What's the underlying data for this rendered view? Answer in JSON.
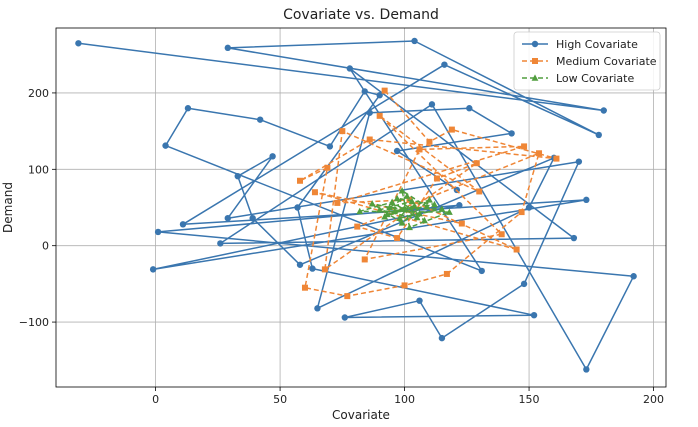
{
  "chart_data": {
    "type": "line",
    "title": "Covariate vs. Demand",
    "xlabel": "Covariate",
    "ylabel": "Demand",
    "xlim": [
      -40,
      205
    ],
    "ylim": [
      -185,
      285
    ],
    "xticks": [
      0,
      50,
      100,
      150,
      200
    ],
    "yticks": [
      -100,
      0,
      100,
      200
    ],
    "grid": true,
    "legend_position": "top-right",
    "series": [
      {
        "name": "High Covariate",
        "color": "#3a76af",
        "marker": "circle",
        "linestyle": "solid",
        "points": [
          [
            -31,
            265
          ],
          [
            180,
            177
          ],
          [
            29,
            259
          ],
          [
            104,
            268
          ],
          [
            178,
            145
          ],
          [
            116,
            237
          ],
          [
            11,
            28
          ],
          [
            173,
            60
          ],
          [
            -1,
            -31
          ],
          [
            122,
            53
          ],
          [
            1,
            18
          ],
          [
            192,
            -40
          ],
          [
            173,
            -162
          ],
          [
            111,
            185
          ],
          [
            26,
            3
          ],
          [
            168,
            10
          ],
          [
            78,
            232
          ],
          [
            131,
            -33
          ],
          [
            4,
            131
          ],
          [
            13,
            180
          ],
          [
            42,
            165
          ],
          [
            70,
            130
          ],
          [
            84,
            202
          ],
          [
            90,
            197
          ],
          [
            57,
            50
          ],
          [
            63,
            -30
          ],
          [
            152,
            -91
          ],
          [
            76,
            -94
          ],
          [
            106,
            -72
          ],
          [
            115,
            -121
          ],
          [
            148,
            -50
          ],
          [
            170,
            110
          ],
          [
            29,
            36
          ],
          [
            47,
            117
          ],
          [
            33,
            91
          ],
          [
            39,
            36
          ],
          [
            58,
            -25
          ],
          [
            160,
            115
          ],
          [
            150,
            50
          ],
          [
            65,
            -82
          ],
          [
            86,
            174
          ],
          [
            126,
            180
          ],
          [
            143,
            147
          ],
          [
            97,
            124
          ],
          [
            121,
            73
          ]
        ]
      },
      {
        "name": "Medium Covariate",
        "color": "#ef8636",
        "marker": "square",
        "linestyle": "dashed",
        "points": [
          [
            92,
            203
          ],
          [
            110,
            136
          ],
          [
            119,
            152
          ],
          [
            161,
            114
          ],
          [
            86,
            139
          ],
          [
            58,
            85
          ],
          [
            69,
            102
          ],
          [
            60,
            -55
          ],
          [
            77,
            -66
          ],
          [
            100,
            -52
          ],
          [
            117,
            -37
          ],
          [
            147,
            44
          ],
          [
            154,
            121
          ],
          [
            81,
            25
          ],
          [
            97,
            10
          ],
          [
            113,
            88
          ],
          [
            129,
            108
          ],
          [
            68,
            -31
          ],
          [
            75,
            150
          ],
          [
            130,
            71
          ],
          [
            90,
            170
          ],
          [
            139,
            15
          ],
          [
            84,
            -18
          ],
          [
            106,
            126
          ],
          [
            148,
            130
          ],
          [
            73,
            56
          ],
          [
            102,
            60
          ],
          [
            145,
            -5
          ],
          [
            64,
            70
          ],
          [
            123,
            29
          ]
        ]
      },
      {
        "name": "Low Covariate",
        "color": "#519e3e",
        "marker": "triangle",
        "linestyle": "dashed",
        "points": [
          [
            96,
            45
          ],
          [
            104,
            52
          ],
          [
            92,
            38
          ],
          [
            110,
            60
          ],
          [
            99,
            30
          ],
          [
            87,
            55
          ],
          [
            106,
            42
          ],
          [
            101,
            65
          ],
          [
            94,
            50
          ],
          [
            115,
            48
          ],
          [
            98,
            36
          ],
          [
            103,
            58
          ],
          [
            90,
            47
          ],
          [
            108,
            33
          ],
          [
            97,
            62
          ],
          [
            112,
            54
          ],
          [
            93,
            41
          ],
          [
            100,
            49
          ],
          [
            105,
            37
          ],
          [
            95,
            57
          ],
          [
            82,
            45
          ],
          [
            118,
            44
          ],
          [
            102,
            24
          ],
          [
            99,
            72
          ],
          [
            109,
            51
          ]
        ]
      }
    ]
  }
}
